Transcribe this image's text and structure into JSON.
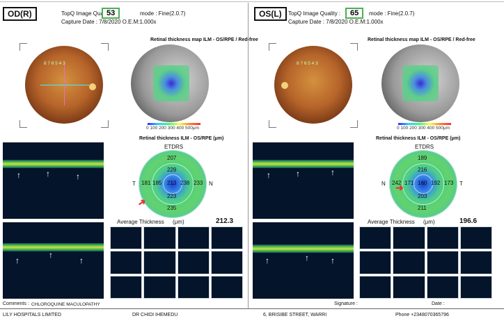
{
  "od": {
    "eye_label": "OD(R)",
    "quality_label": "TopQ Image Quality :",
    "quality_value": "53",
    "mode": "mode : Fine(2.0.7)",
    "capture": "Capture Date : 7/8/2020   O.E.M:1.000x",
    "map_title": "Retinal thickness map ILM - OS/RPE / Red-free",
    "etdrs_title": "Retinal thickness ILM - OS/RPE (μm)",
    "etdrs_label": "ETDRS",
    "left_dir": "T",
    "right_dir": "N",
    "values": {
      "top_outer": "207",
      "top_inner": "229",
      "left_outer": "181",
      "left_inner": "185",
      "center": "213",
      "right_inner": "238",
      "right_outer": "233",
      "bottom_inner": "223",
      "bottom_outer": "235"
    },
    "avg_label": "Average Thickness",
    "avg_unit": "(μm)",
    "avg_value": "212.3",
    "scale": "0  100  200  300  400  500μm"
  },
  "os": {
    "eye_label": "OS(L)",
    "quality_label": "TopQ Image Quality :",
    "quality_value": "65",
    "mode": "mode : Fine(2.0.7)",
    "capture": "Capture Date : 7/8/2020   O.E.M:1.000x",
    "map_title": "Retinal thickness map ILM - OS/RPE / Red-free",
    "etdrs_title": "Retinal thickness ILM - OS/RPE (μm)",
    "etdrs_label": "ETDRS",
    "left_dir": "N",
    "right_dir": "T",
    "values": {
      "top_outer": "189",
      "top_inner": "216",
      "left_outer": "242",
      "left_inner": "171",
      "center": "160",
      "right_inner": "192",
      "right_outer": "173",
      "bottom_inner": "203",
      "bottom_outer": "211"
    },
    "avg_label": "Average Thickness",
    "avg_unit": "(μm)",
    "avg_value": "196.6",
    "scale": "0  100  200  300  400  500μm"
  },
  "comments_label": "Comments :",
  "comments_value": "CHLOROQUINE MACULOPATHY",
  "signature_label": "Signature :",
  "date_label": "Date :",
  "footer": {
    "clinic": "LILY HOSPITALS LIMITED",
    "doctor": "DR CHIDI IHEMEDU",
    "address": "6, BRISIBE STREET, WARRI",
    "phone": "Phone +2348070365796"
  },
  "colors": {
    "quality_border": "#4caf50",
    "arrow_red": "#e53935",
    "oct_bg": "#04142a"
  }
}
